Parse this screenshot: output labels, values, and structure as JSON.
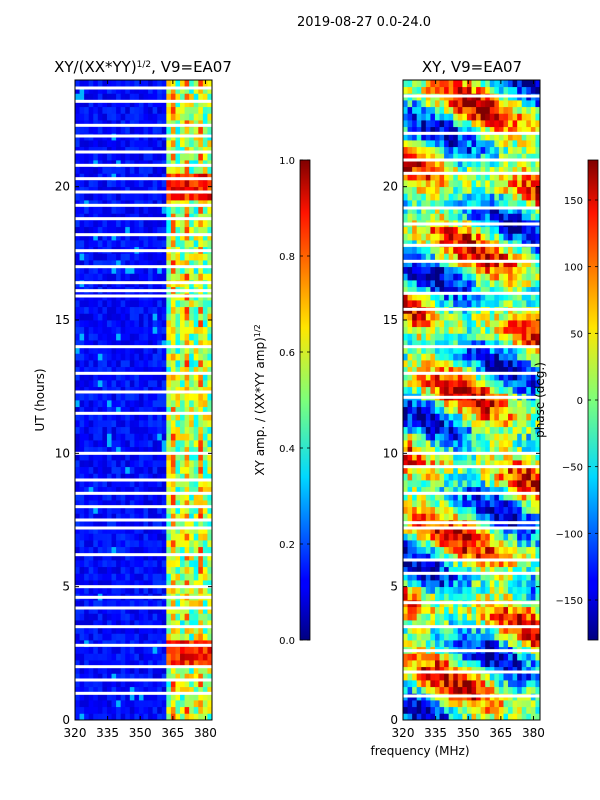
{
  "figure_title": "2019-08-27 0.0-24.0",
  "chart_data": [
    {
      "type": "heatmap",
      "title_main": "XY/(XX*YY)",
      "title_sup": "1/2",
      "title_tail": ", V9=EA07",
      "xlabel": "",
      "ylabel": "UT (hours)",
      "xlim": [
        320,
        383
      ],
      "ylim": [
        0,
        24
      ],
      "xticks": [
        320,
        335,
        350,
        365,
        380
      ],
      "yticks": [
        0,
        5,
        10,
        15,
        20
      ],
      "colorbar": {
        "label_main": "XY amp. / (XX*YY amp)",
        "label_sup": "1/2",
        "range": [
          0.0,
          1.0
        ],
        "ticks": [
          "0.0",
          "0.2",
          "0.4",
          "0.6",
          "0.8",
          "1.0"
        ],
        "tick_values": [
          0.0,
          0.2,
          0.4,
          0.6,
          0.8,
          1.0
        ]
      },
      "gap_hours": [
        23.7,
        23.2,
        22.3,
        21.9,
        21.3,
        20.8,
        20.3,
        19.8,
        19.3,
        18.8,
        18.2,
        17.6,
        17.0,
        16.4,
        16.1,
        15.9,
        14.0,
        13.0,
        12.3,
        11.5,
        10.0,
        9.0,
        8.5,
        8.0,
        7.5,
        7.2,
        6.2,
        5.0,
        4.6,
        4.2,
        3.5,
        2.8,
        2.0,
        1.5,
        1.0
      ],
      "rfi_band_mhz": [
        362,
        383
      ],
      "notes": "amplitude mostly near 0.1 below 362 MHz; high and patchy 362-383 MHz"
    },
    {
      "type": "heatmap",
      "title": "XY, V9=EA07",
      "xlabel": "frequency (MHz)",
      "ylabel": "",
      "xlim": [
        320,
        383
      ],
      "ylim": [
        0,
        24
      ],
      "xticks": [
        320,
        335,
        350,
        365,
        380
      ],
      "yticks": [
        0,
        5,
        10,
        15,
        20
      ],
      "colorbar": {
        "label": "phase (deg.)",
        "range": [
          -180,
          180
        ],
        "ticks": [
          "−150",
          "−100",
          "−50",
          "0",
          "50",
          "100",
          "150"
        ],
        "tick_values": [
          -150,
          -100,
          -50,
          0,
          50,
          100,
          150
        ]
      },
      "gap_hours": [
        23.4,
        22.0,
        21.0,
        20.5,
        19.2,
        18.6,
        17.8,
        17.2,
        16.0,
        15.4,
        14.0,
        13.0,
        12.1,
        10.0,
        9.5,
        8.5,
        7.4,
        7.2,
        6.0,
        5.5,
        4.4,
        3.5,
        2.6,
        1.8,
        0.9
      ],
      "notes": "phase wraps across full range with horizontal banding"
    }
  ]
}
